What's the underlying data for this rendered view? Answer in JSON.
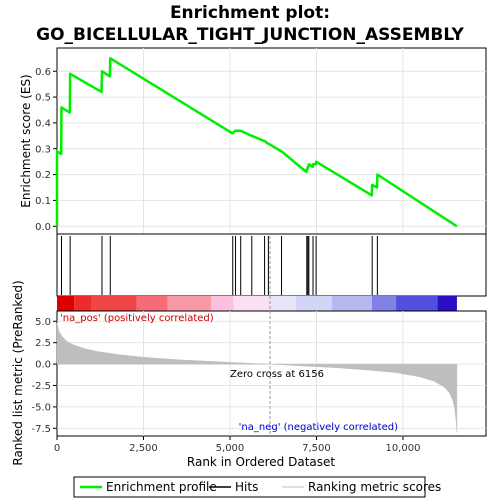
{
  "chart_data": {
    "type": "line",
    "title_line1": "Enrichment plot:",
    "title_line2": "GO_BICELLULAR_TIGHT_JUNCTION_ASSEMBLY",
    "es_panel": {
      "ylabel": "Enrichment score (ES)",
      "ylim": [
        -0.03,
        0.69
      ],
      "yticks": [
        "0.0",
        "0.1",
        "0.2",
        "0.3",
        "0.4",
        "0.5",
        "0.6"
      ],
      "ytick_values": [
        0.0,
        0.1,
        0.2,
        0.3,
        0.4,
        0.5,
        0.6
      ],
      "series": [
        {
          "name": "Enrichment profile",
          "color": "#00ee00",
          "x": [
            0,
            1,
            120,
            130,
            250,
            370,
            380,
            1290,
            1300,
            1530,
            1540,
            5070,
            5080,
            5150,
            5160,
            5300,
            5310,
            5620,
            5630,
            5990,
            6000,
            6100,
            6110,
            6480,
            6490,
            7210,
            7220,
            7240,
            7250,
            7270,
            7280,
            7390,
            7400,
            7480,
            7490,
            9100,
            9110,
            9250,
            9260,
            11560
          ],
          "y": [
            0.0,
            0.29,
            0.28,
            0.46,
            0.45,
            0.44,
            0.59,
            0.52,
            0.6,
            0.58,
            0.65,
            0.36,
            0.36,
            0.37,
            0.37,
            0.37,
            0.37,
            0.35,
            0.35,
            0.33,
            0.33,
            0.32,
            0.32,
            0.29,
            0.29,
            0.21,
            0.22,
            0.22,
            0.23,
            0.23,
            0.24,
            0.23,
            0.24,
            0.24,
            0.25,
            0.12,
            0.16,
            0.15,
            0.2,
            0.0
          ]
        }
      ]
    },
    "hits": {
      "name": "Hits",
      "color": "#000000",
      "positions": [
        0,
        130,
        380,
        1300,
        1540,
        5080,
        5160,
        5310,
        5630,
        6000,
        6110,
        6490,
        7220,
        7250,
        7280,
        7400,
        7490,
        9110,
        9260
      ]
    },
    "color_bar": {
      "segments": [
        {
          "from": 0,
          "to": 500,
          "color": "#dd0000"
        },
        {
          "from": 500,
          "to": 1000,
          "color": "#ee2b2b"
        },
        {
          "from": 1000,
          "to": 2300,
          "color": "#f04545"
        },
        {
          "from": 2300,
          "to": 3200,
          "color": "#f56b78"
        },
        {
          "from": 3200,
          "to": 4450,
          "color": "#f79aa6"
        },
        {
          "from": 4450,
          "to": 5100,
          "color": "#fbc0df"
        },
        {
          "from": 5100,
          "to": 6156,
          "color": "#fde0f0"
        },
        {
          "from": 6156,
          "to": 6900,
          "color": "#e6e6fb"
        },
        {
          "from": 6900,
          "to": 7950,
          "color": "#d4d4f6"
        },
        {
          "from": 7950,
          "to": 9100,
          "color": "#b8b8f0"
        },
        {
          "from": 9100,
          "to": 9800,
          "color": "#8282e6"
        },
        {
          "from": 9800,
          "to": 11000,
          "color": "#5050dc"
        },
        {
          "from": 11000,
          "to": 11560,
          "color": "#2a0fc4"
        }
      ]
    },
    "ranked_panel": {
      "ylabel": "Ranked list metric (PreRanked)",
      "xlabel": "Rank in Ordered Dataset",
      "ylim": [
        -8.4,
        6.2
      ],
      "yticks": [
        "5.0",
        "2.5",
        "0.0",
        "-2.5",
        "-5.0",
        "-7.5"
      ],
      "ytick_values": [
        5.0,
        2.5,
        0.0,
        -2.5,
        -5.0,
        -7.5
      ],
      "xlim": [
        0,
        12400
      ],
      "xticks": [
        "0",
        "2,500",
        "5,000",
        "7,500",
        "10,000"
      ],
      "xtick_values": [
        0,
        2500,
        5000,
        7500,
        10000
      ],
      "series": [
        {
          "name": "Ranking metric scores",
          "color": "#bebebe",
          "x": [
            0,
            50,
            150,
            300,
            500,
            800,
            1200,
            1800,
            2500,
            3500,
            4500,
            5500,
            6156,
            7000,
            8000,
            9000,
            9800,
            10500,
            10900,
            11200,
            11350,
            11450,
            11500,
            11540,
            11560
          ],
          "y": [
            4.8,
            3.9,
            3.2,
            2.6,
            2.2,
            1.8,
            1.45,
            1.1,
            0.8,
            0.5,
            0.3,
            0.1,
            0.0,
            -0.2,
            -0.4,
            -0.7,
            -1.0,
            -1.5,
            -2.0,
            -2.7,
            -3.4,
            -4.3,
            -5.3,
            -6.8,
            -8.0
          ]
        }
      ],
      "zero_cross_label": "Zero cross at 6156",
      "zero_cross": 6156,
      "pos_label": "'na_pos' (positively correlated)",
      "pos_color": "#cc0000",
      "neg_label": "'na_neg' (negatively correlated)",
      "neg_color": "#0000cc"
    },
    "legend": {
      "placement": "bottom",
      "items": [
        {
          "label": "Enrichment profile",
          "color": "#00ee00"
        },
        {
          "label": "Hits",
          "color": "#000000"
        },
        {
          "label": "Ranking metric scores",
          "color": "#bebebe"
        }
      ]
    }
  }
}
